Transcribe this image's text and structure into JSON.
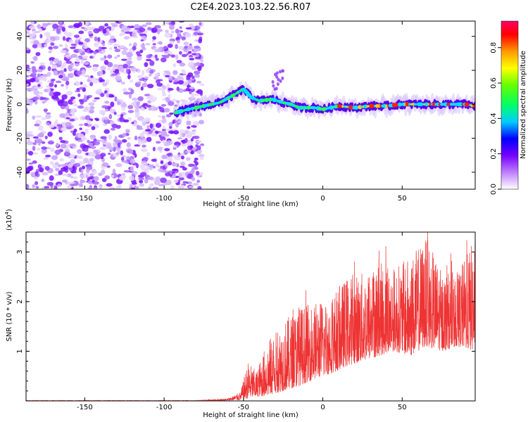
{
  "title": "C2E4.2023.103.22.56.R07",
  "chart_data": [
    {
      "type": "heatmap",
      "xlabel": "Height of straight line (km)",
      "ylabel": "Frequency (Hz)",
      "xlim": [
        -187,
        96
      ],
      "ylim": [
        -50,
        49
      ],
      "xticks": [
        -150,
        -100,
        -50,
        0,
        50
      ],
      "yticks": [
        -40,
        -20,
        0,
        20,
        40
      ],
      "noise_region": {
        "x_range": [
          -187,
          -76
        ],
        "y_range": [
          -50,
          49
        ]
      },
      "ridge": {
        "x": [
          -93,
          -85,
          -75,
          -65,
          -57,
          -50,
          -45,
          -40,
          -32,
          -25,
          -20,
          -15,
          -5,
          0,
          10,
          20,
          30,
          40,
          50,
          60,
          70,
          80,
          90,
          96
        ],
        "y": [
          -5,
          -3,
          -1,
          1,
          5,
          9,
          4,
          2,
          3,
          1,
          0,
          -2,
          -2,
          -3,
          -1,
          -2,
          -1,
          -1,
          0,
          0,
          0,
          0,
          0,
          -1
        ]
      },
      "colorbar": {
        "label": "Normalized spectral amplitude",
        "range": [
          0.0,
          0.95
        ],
        "ticks": [
          0.0,
          0.2,
          0.4,
          0.6,
          0.8
        ]
      },
      "grid": false
    },
    {
      "type": "line",
      "xlabel": "Height of straight line (km)",
      "ylabel": "SNR (10 * v/v)",
      "scale_note": "(x10",
      "scale_exp": "4",
      "scale_close": ")",
      "xlim": [
        -187,
        96
      ],
      "ylim": [
        0,
        3.4
      ],
      "xticks": [
        -150,
        -100,
        -50,
        0,
        50
      ],
      "yticks": [
        1,
        2,
        3
      ],
      "color": "#ee3333",
      "envelope": {
        "x": [
          -187,
          -80,
          -60,
          -52,
          -47,
          -42,
          -35,
          -25,
          -15,
          -5,
          5,
          15,
          25,
          35,
          45,
          55,
          65,
          75,
          85,
          96
        ],
        "low": [
          0,
          0,
          0.01,
          0.02,
          0.05,
          0.08,
          0.1,
          0.2,
          0.3,
          0.45,
          0.55,
          0.7,
          0.8,
          0.9,
          1.0,
          0.9,
          1.1,
          1.0,
          1.1,
          1.0
        ],
        "high": [
          0.01,
          0.01,
          0.05,
          0.18,
          0.8,
          0.6,
          1.2,
          1.6,
          1.9,
          2.0,
          2.1,
          2.5,
          2.6,
          2.8,
          2.7,
          2.9,
          3.3,
          2.6,
          2.6,
          3.3
        ]
      },
      "grid": false
    }
  ]
}
